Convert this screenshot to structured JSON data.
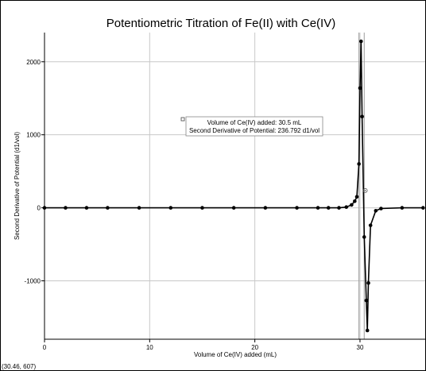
{
  "chart_data": {
    "type": "line",
    "title": "Potentiometric Titration of Fe(II) with Ce(IV)",
    "xlabel": "Volume of Ce(IV) added (mL)",
    "ylabel": "Second Derivative of Potential (d1/vol)",
    "xlim": [
      0,
      36.2
    ],
    "ylim": [
      -1800,
      2400
    ],
    "x_ticks": [
      "0",
      "10",
      "20",
      "30"
    ],
    "y_ticks": [
      "-1000",
      "0",
      "1000",
      "2000"
    ],
    "x_tick_values": [
      0,
      10,
      20,
      30
    ],
    "y_tick_values": [
      -1000,
      0,
      1000,
      2000
    ],
    "grid": true,
    "series": [
      {
        "color": "#000000",
        "points": [
          [
            0,
            0
          ],
          [
            2,
            0
          ],
          [
            4,
            0
          ],
          [
            6,
            0
          ],
          [
            9,
            0
          ],
          [
            12,
            0
          ],
          [
            15,
            0
          ],
          [
            18,
            0
          ],
          [
            21,
            0
          ],
          [
            24,
            0
          ],
          [
            26,
            0
          ],
          [
            27,
            0
          ],
          [
            28,
            0
          ],
          [
            28.7,
            10
          ],
          [
            29.2,
            40
          ],
          [
            29.5,
            90
          ],
          [
            29.7,
            150
          ],
          [
            29.9,
            600
          ],
          [
            30.0,
            1640
          ],
          [
            30.1,
            2280
          ],
          [
            30.2,
            1250
          ],
          [
            30.4,
            -400
          ],
          [
            30.6,
            -1270
          ],
          [
            30.7,
            -1680
          ],
          [
            30.8,
            -1030
          ],
          [
            31.0,
            -240
          ],
          [
            31.5,
            -40
          ],
          [
            32,
            -10
          ],
          [
            34,
            0
          ],
          [
            36,
            0
          ]
        ]
      }
    ],
    "vline_x": [
      29.9,
      30.4
    ],
    "cursor_point": [
      30.5,
      237
    ],
    "annotation": {
      "line1": "Volume of Ce(IV) added: 30.5 mL",
      "line2": "Second Derivative of Potential: 236.792 d1/vol"
    },
    "readout": "(30.46, 607)"
  }
}
